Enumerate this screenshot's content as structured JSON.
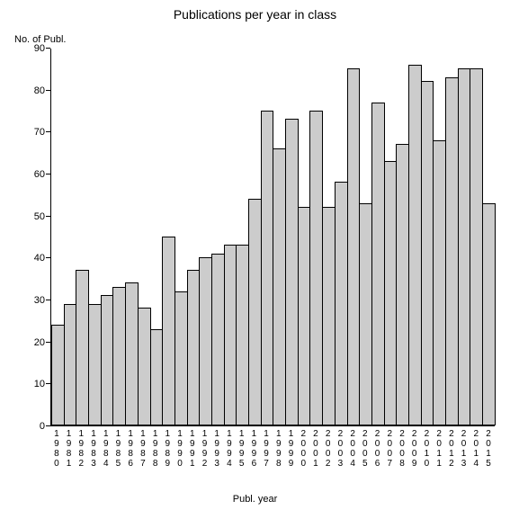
{
  "chart": {
    "type": "bar",
    "title": "Publications per year in class",
    "title_fontsize": 14,
    "y_axis_title": "No. of Publ.",
    "x_axis_title": "Publ. year",
    "label_fontsize": 11,
    "tick_fontsize": 11,
    "background_color": "#ffffff",
    "bar_fill_color": "#cccccc",
    "bar_border_color": "#000000",
    "axis_color": "#000000",
    "text_color": "#000000",
    "ylim": [
      0,
      90
    ],
    "ytick_step": 10,
    "yticks": [
      0,
      10,
      20,
      30,
      40,
      50,
      60,
      70,
      80,
      90
    ],
    "categories": [
      "1980",
      "1981",
      "1982",
      "1983",
      "1984",
      "1985",
      "1986",
      "1987",
      "1988",
      "1989",
      "1990",
      "1991",
      "1992",
      "1993",
      "1994",
      "1995",
      "1996",
      "1997",
      "1998",
      "1999",
      "2000",
      "2001",
      "2002",
      "2003",
      "2004",
      "2005",
      "2006",
      "2007",
      "2008",
      "2009",
      "2010",
      "2011",
      "2012",
      "2013",
      "2014",
      "2015"
    ],
    "values": [
      24,
      29,
      37,
      29,
      31,
      33,
      34,
      28,
      23,
      45,
      32,
      37,
      40,
      41,
      43,
      43,
      54,
      75,
      66,
      73,
      52,
      75,
      52,
      58,
      85,
      53,
      77,
      63,
      67,
      86,
      82,
      68,
      83,
      85,
      85,
      53
    ],
    "bar_width": 1.0
  }
}
